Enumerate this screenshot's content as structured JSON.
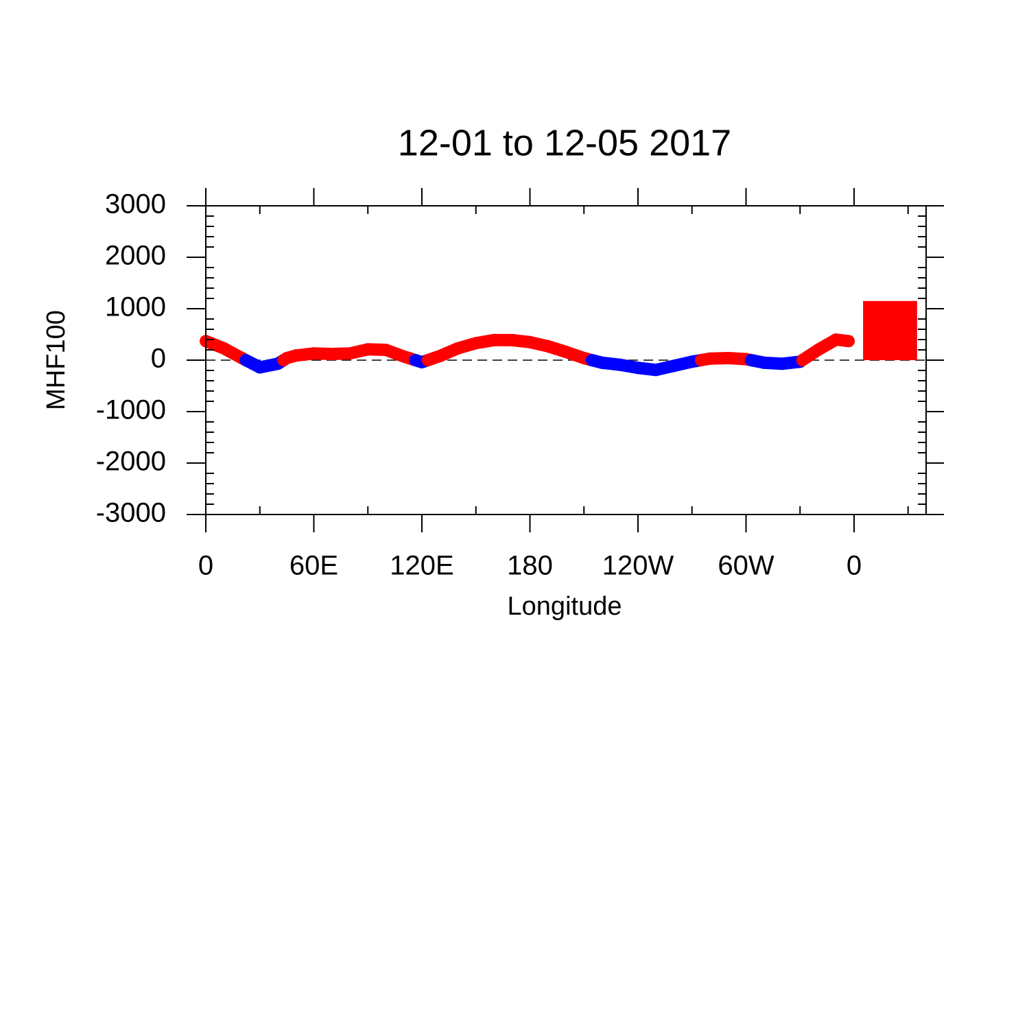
{
  "chart_data": {
    "type": "line",
    "title": "12-01 to 12-05 2017",
    "xlabel": "Longitude",
    "ylabel": "MHF100",
    "x": [
      0,
      10,
      20,
      30,
      40,
      45,
      50,
      60,
      70,
      80,
      90,
      100,
      110,
      120,
      130,
      140,
      150,
      160,
      170,
      180,
      190,
      200,
      210,
      220,
      230,
      240,
      250,
      260,
      270,
      280,
      290,
      300,
      310,
      320,
      330,
      340,
      350,
      357
    ],
    "values": [
      370,
      230,
      40,
      -140,
      -70,
      40,
      90,
      130,
      120,
      130,
      210,
      200,
      70,
      -40,
      80,
      230,
      330,
      390,
      390,
      350,
      270,
      160,
      40,
      -50,
      -90,
      -150,
      -190,
      -110,
      -30,
      30,
      40,
      20,
      -50,
      -70,
      -30,
      200,
      400,
      370
    ],
    "color_above": "#ff0000",
    "color_below": "#0000ff",
    "bar": {
      "x": [
        365,
        395
      ],
      "value": 1150,
      "color": "#ff0000"
    },
    "xlim": [
      0,
      400
    ],
    "ylim": [
      -3000,
      3000
    ],
    "xticks": [
      0,
      {
        "value": 60,
        "label": "60E"
      },
      {
        "value": 120,
        "label": "120E"
      },
      180,
      {
        "value": 240,
        "label": "120W"
      },
      {
        "value": 300,
        "label": "60W"
      },
      {
        "value": 360,
        "label": "0"
      }
    ],
    "yticks": [
      -3000,
      -2000,
      -1000,
      0,
      1000,
      2000,
      3000
    ],
    "reference_line": 0
  }
}
